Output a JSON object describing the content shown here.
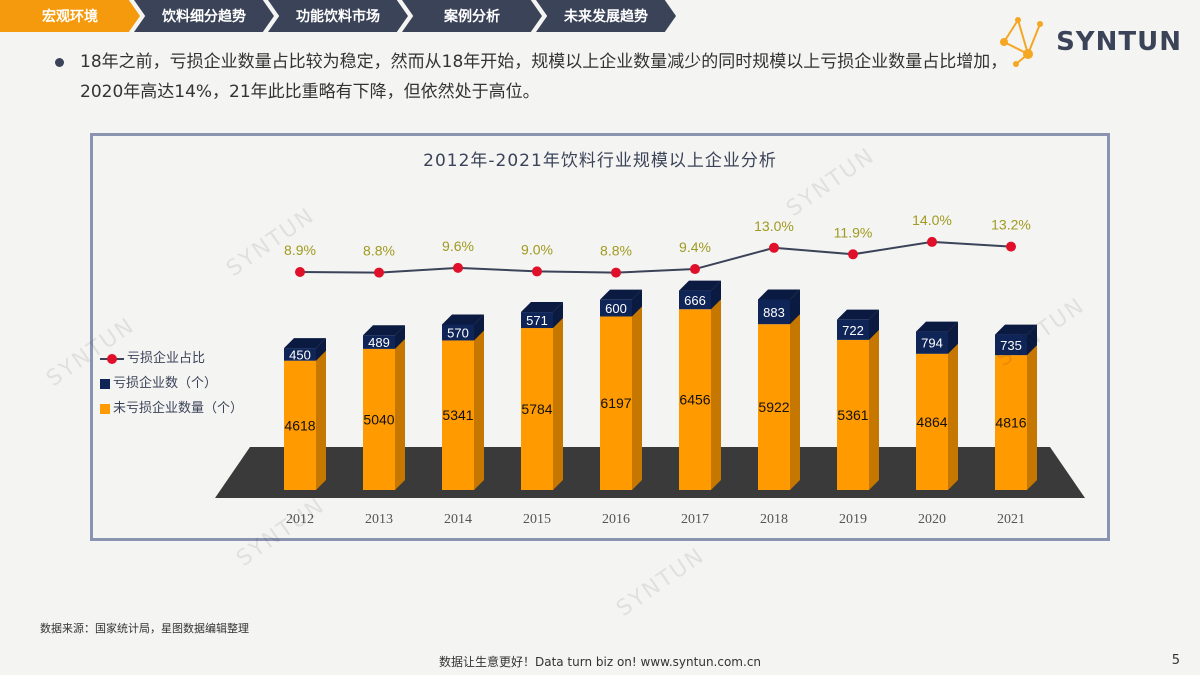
{
  "nav": {
    "tabs": [
      {
        "label": "宏观环境",
        "active": true
      },
      {
        "label": "饮料细分趋势"
      },
      {
        "label": "功能饮料市场"
      },
      {
        "label": "案例分析"
      },
      {
        "label": "未来发展趋势"
      }
    ]
  },
  "logo": {
    "text": "SYNTUN"
  },
  "bullet": "18年之前，亏损企业数量占比较为稳定，然而从18年开始，规模以上企业数量减少的同时规模以上亏损企业数量占比增加，2020年高达14%，21年此比重略有下降，但依然处于高位。",
  "chart_data": {
    "type": "bar",
    "title": "2012年-2021年饮料行业规模以上企业分析",
    "categories": [
      "2012",
      "2013",
      "2014",
      "2015",
      "2016",
      "2017",
      "2018",
      "2019",
      "2020",
      "2021"
    ],
    "series": [
      {
        "name": "未亏损企业数量（个）",
        "type": "stacked-bar",
        "color": "#ff9a00",
        "values": [
          4618,
          5040,
          5341,
          5784,
          6197,
          6456,
          5922,
          5361,
          4864,
          4816
        ]
      },
      {
        "name": "亏损企业数（个）",
        "type": "stacked-bar",
        "color": "#0f2557",
        "values": [
          450,
          489,
          570,
          571,
          600,
          666,
          883,
          722,
          794,
          735
        ]
      },
      {
        "name": "亏损企业占比",
        "type": "line",
        "color": "#e0102a",
        "values": [
          8.9,
          8.8,
          9.6,
          9.0,
          8.8,
          9.4,
          13.0,
          11.9,
          14.0,
          13.2
        ],
        "labels": [
          "8.9%",
          "8.8%",
          "9.6%",
          "9.0%",
          "8.8%",
          "9.4%",
          "13.0%",
          "11.9%",
          "14.0%",
          "13.2%"
        ]
      }
    ],
    "legend": "left"
  },
  "source": "数据来源：国家统计局，星图数据编辑整理",
  "footer": "数据让生意更好！Data turn biz on!  www.syntun.com.cn",
  "page": "5",
  "watermark": "SYNTUN"
}
